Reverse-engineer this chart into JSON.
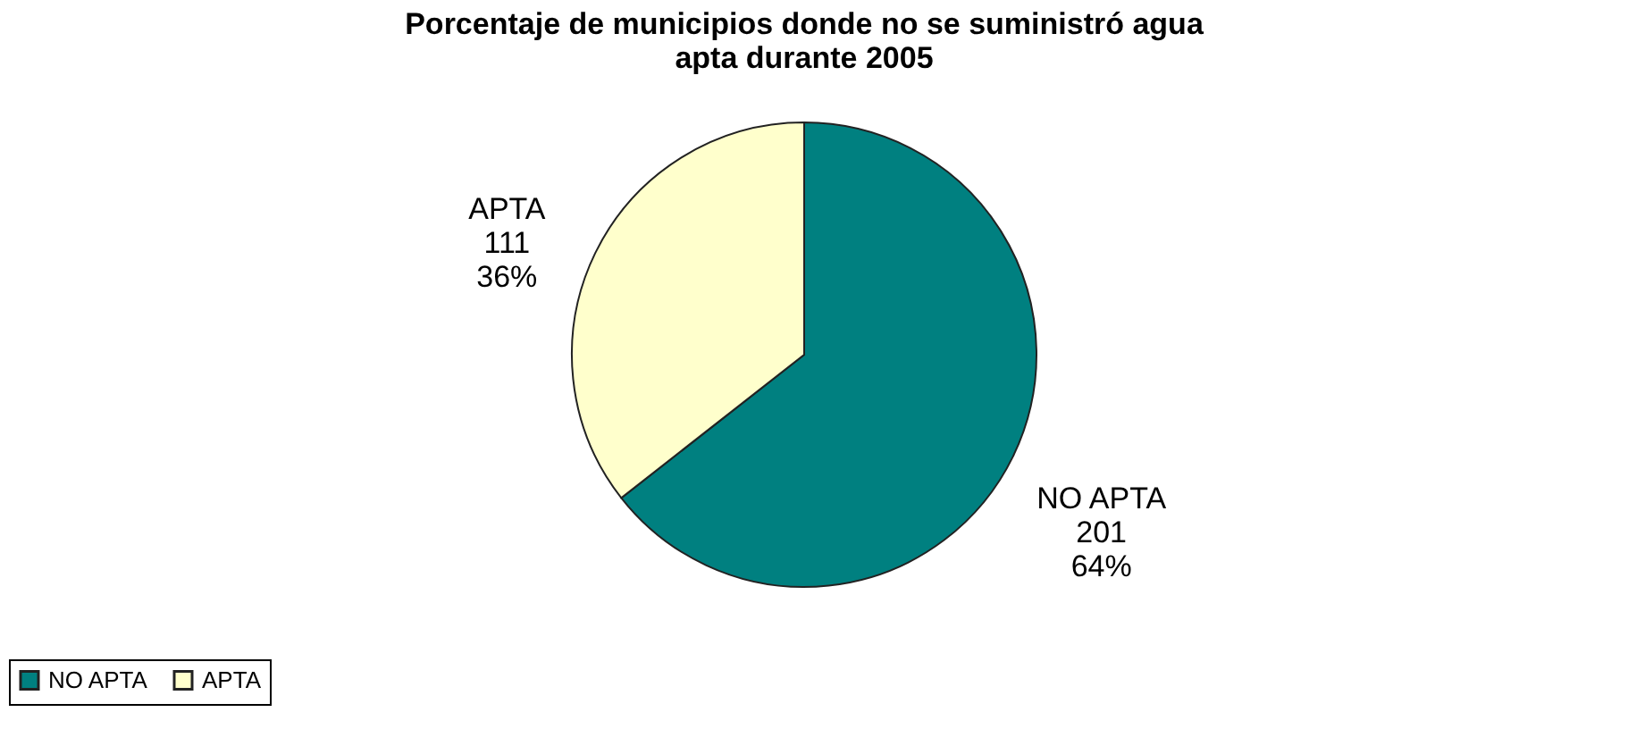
{
  "chart_data": {
    "type": "pie",
    "title": [
      "Porcentaje de municipios donde no se suministró agua",
      "apta durante  2005"
    ],
    "categories": [
      "NO APTA",
      "APTA"
    ],
    "values": [
      201,
      111
    ],
    "colors": [
      "#008080",
      "#ffffcc"
    ],
    "value_labels": [
      "201\n64%",
      "111\n36%"
    ],
    "legend": "bottom"
  }
}
